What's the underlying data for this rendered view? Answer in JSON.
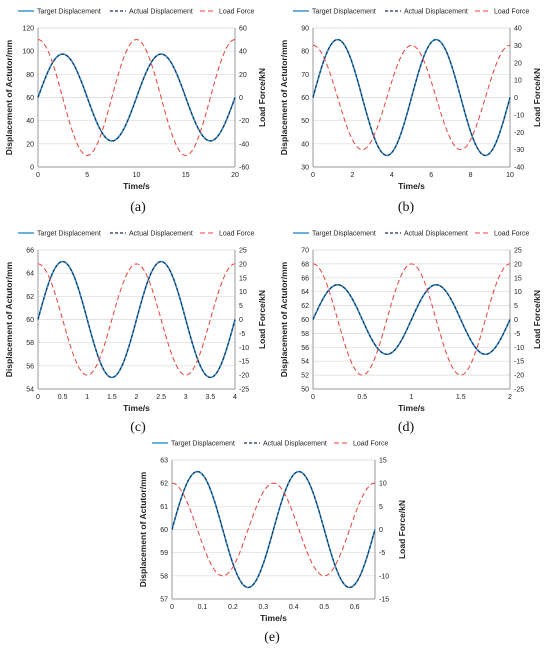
{
  "colors": {
    "target": "#2f8fc9",
    "actual": "#1b2f5a",
    "load": "#e8413c",
    "grid": "#d9d9d9",
    "axis": "#808080"
  },
  "legend": {
    "target": "Target Displacement",
    "actual": "Actual Displacement",
    "load": "Load Force"
  },
  "chart_data": [
    {
      "type": "line",
      "caption": "(a)",
      "xlabel": "Time/s",
      "ylabel": "Displacement of Actutor/mm",
      "y2label": "Load Force/kN",
      "xlim": [
        0,
        20
      ],
      "xticks": [
        0,
        5,
        10,
        15,
        20
      ],
      "ylim": [
        0,
        120
      ],
      "yticks": [
        0,
        20,
        40,
        60,
        80,
        100,
        120
      ],
      "y2lim": [
        -60,
        60
      ],
      "y2ticks": [
        -60,
        -40,
        -20,
        0,
        20,
        40,
        60
      ],
      "grid": "horizontal",
      "legend_position": "top",
      "series": [
        {
          "name": "Target Displacement",
          "axis": "left",
          "offset": 60,
          "amplitude": 37.5,
          "period_s": 10,
          "phase": "sin"
        },
        {
          "name": "Actual Displacement",
          "axis": "left",
          "offset": 60,
          "amplitude": 37.5,
          "period_s": 10,
          "phase": "sin"
        },
        {
          "name": "Load Force",
          "axis": "right",
          "offset": 0,
          "amplitude": 50,
          "period_s": 10,
          "phase": "cos"
        }
      ]
    },
    {
      "type": "line",
      "caption": "(b)",
      "xlabel": "Time/s",
      "ylabel": "Displacement of Actutor/mm",
      "y2label": "Load Force/kN",
      "xlim": [
        0,
        10
      ],
      "xticks": [
        0,
        2,
        4,
        6,
        8,
        10
      ],
      "ylim": [
        30,
        90
      ],
      "yticks": [
        30,
        40,
        50,
        60,
        70,
        80,
        90
      ],
      "y2lim": [
        -40,
        40
      ],
      "y2ticks": [
        -40,
        -30,
        -20,
        -10,
        0,
        10,
        20,
        30,
        40
      ],
      "grid": "horizontal",
      "legend_position": "top",
      "series": [
        {
          "name": "Target Displacement",
          "axis": "left",
          "offset": 60,
          "amplitude": 25,
          "period_s": 5,
          "phase": "sin"
        },
        {
          "name": "Actual Displacement",
          "axis": "left",
          "offset": 60,
          "amplitude": 25,
          "period_s": 5,
          "phase": "sin"
        },
        {
          "name": "Load Force",
          "axis": "right",
          "offset": 0,
          "amplitude": 30,
          "period_s": 5,
          "phase": "cos"
        }
      ]
    },
    {
      "type": "line",
      "caption": "(c)",
      "xlabel": "Time/s",
      "ylabel": "Displacement of Actutor/mm",
      "y2label": "Load Force/kN",
      "xlim": [
        0,
        4
      ],
      "xticks": [
        0,
        0.5,
        1,
        1.5,
        2,
        2.5,
        3,
        3.5,
        4
      ],
      "ylim": [
        54,
        66
      ],
      "yticks": [
        54,
        56,
        58,
        60,
        62,
        64,
        66
      ],
      "y2lim": [
        -25,
        25
      ],
      "y2ticks": [
        -25,
        -20,
        -15,
        -10,
        -5,
        0,
        5,
        10,
        15,
        20,
        25
      ],
      "grid": "horizontal",
      "legend_position": "top",
      "series": [
        {
          "name": "Target Displacement",
          "axis": "left",
          "offset": 60,
          "amplitude": 5,
          "period_s": 2,
          "phase": "sin"
        },
        {
          "name": "Actual Displacement",
          "axis": "left",
          "offset": 60,
          "amplitude": 5,
          "period_s": 2,
          "phase": "sin"
        },
        {
          "name": "Load Force",
          "axis": "right",
          "offset": 0,
          "amplitude": 20,
          "period_s": 2,
          "phase": "cos"
        }
      ]
    },
    {
      "type": "line",
      "caption": "(d)",
      "xlabel": "Time/s",
      "ylabel": "Displacement of Actutor/mm",
      "y2label": "Load Force/kN",
      "xlim": [
        0,
        2
      ],
      "xticks": [
        0,
        0.5,
        1,
        1.5,
        2
      ],
      "ylim": [
        50,
        70
      ],
      "yticks": [
        50,
        52,
        54,
        56,
        58,
        60,
        62,
        64,
        66,
        68,
        70
      ],
      "y2lim": [
        -25,
        25
      ],
      "y2ticks": [
        -25,
        -20,
        -15,
        -10,
        -5,
        0,
        5,
        10,
        15,
        20,
        25
      ],
      "grid": "horizontal",
      "legend_position": "top",
      "series": [
        {
          "name": "Target Displacement",
          "axis": "left",
          "offset": 60,
          "amplitude": 5,
          "period_s": 1,
          "phase": "sin"
        },
        {
          "name": "Actual Displacement",
          "axis": "left",
          "offset": 60,
          "amplitude": 5,
          "period_s": 1,
          "phase": "sin"
        },
        {
          "name": "Load Force",
          "axis": "right",
          "offset": 0,
          "amplitude": 20,
          "period_s": 1,
          "phase": "cos"
        }
      ]
    },
    {
      "type": "line",
      "caption": "(e)",
      "xlabel": "Time/s",
      "ylabel": "Displacement of Actutor/mm",
      "y2label": "Load Force/kN",
      "xlim": [
        0,
        0.6667
      ],
      "xticks": [
        0,
        0.1,
        0.2,
        0.3,
        0.4,
        0.5,
        0.6
      ],
      "ylim": [
        57,
        63
      ],
      "yticks": [
        57,
        58,
        59,
        60,
        61,
        62,
        63
      ],
      "y2lim": [
        -15,
        15
      ],
      "y2ticks": [
        -15,
        -10,
        -5,
        0,
        5,
        10,
        15
      ],
      "grid": "horizontal",
      "legend_position": "top",
      "series": [
        {
          "name": "Target Displacement",
          "axis": "left",
          "offset": 60,
          "amplitude": 2.5,
          "period_s": 0.3333,
          "phase": "sin"
        },
        {
          "name": "Actual Displacement",
          "axis": "left",
          "offset": 60,
          "amplitude": 2.5,
          "period_s": 0.3333,
          "phase": "sin"
        },
        {
          "name": "Load Force",
          "axis": "right",
          "offset": 0,
          "amplitude": 10,
          "period_s": 0.3333,
          "phase": "cos"
        }
      ]
    }
  ]
}
